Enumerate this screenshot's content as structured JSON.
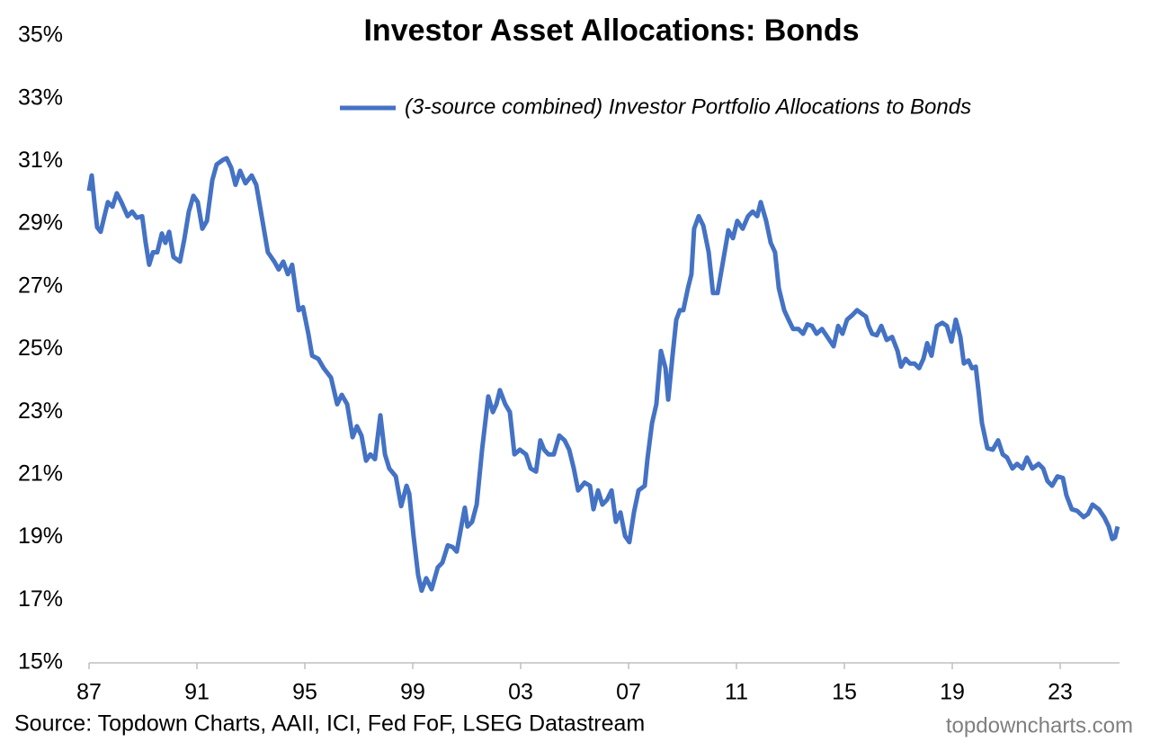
{
  "chart_data": {
    "type": "line",
    "title": "Investor Asset Allocations: Bonds",
    "source": "Source: Topdown Charts, AAII, ICI, Fed FoF, LSEG Datastream",
    "watermark": "topdowncharts.com",
    "legend": "top",
    "grid": false,
    "xlim": [
      1987,
      2025.2
    ],
    "xticks": [
      {
        "value": 1987,
        "label": "87"
      },
      {
        "value": 1991,
        "label": "91"
      },
      {
        "value": 1995,
        "label": "95"
      },
      {
        "value": 1999,
        "label": "99"
      },
      {
        "value": 2003,
        "label": "03"
      },
      {
        "value": 2007,
        "label": "07"
      },
      {
        "value": 2011,
        "label": "11"
      },
      {
        "value": 2015,
        "label": "15"
      },
      {
        "value": 2019,
        "label": "19"
      },
      {
        "value": 2023,
        "label": "23"
      }
    ],
    "ylim": [
      15,
      35
    ],
    "yticks": [
      {
        "value": 15,
        "label": "15%"
      },
      {
        "value": 17,
        "label": "17%"
      },
      {
        "value": 19,
        "label": "19%"
      },
      {
        "value": 21,
        "label": "21%"
      },
      {
        "value": 23,
        "label": "23%"
      },
      {
        "value": 25,
        "label": "25%"
      },
      {
        "value": 27,
        "label": "27%"
      },
      {
        "value": 29,
        "label": "29%"
      },
      {
        "value": 31,
        "label": "31%"
      },
      {
        "value": 33,
        "label": "33%"
      },
      {
        "value": 35,
        "label": "35%"
      }
    ],
    "x": [
      1987.0,
      1987.1,
      1987.2,
      1987.3,
      1987.43,
      1987.57,
      1987.7,
      1987.87,
      1988.03,
      1988.2,
      1988.43,
      1988.6,
      1988.77,
      1988.97,
      1989.1,
      1989.23,
      1989.37,
      1989.53,
      1989.7,
      1989.83,
      1989.97,
      1990.13,
      1990.37,
      1990.53,
      1990.7,
      1990.87,
      1991.03,
      1991.2,
      1991.37,
      1991.57,
      1991.73,
      1991.97,
      1992.1,
      1992.27,
      1992.43,
      1992.6,
      1992.8,
      1993.03,
      1993.2,
      1993.43,
      1993.63,
      1993.87,
      1994.03,
      1994.2,
      1994.37,
      1994.53,
      1994.77,
      1994.93,
      1995.13,
      1995.27,
      1995.5,
      1995.7,
      1995.97,
      1996.2,
      1996.37,
      1996.57,
      1996.77,
      1996.93,
      1997.1,
      1997.27,
      1997.43,
      1997.6,
      1997.8,
      1997.97,
      1998.13,
      1998.37,
      1998.57,
      1998.77,
      1998.87,
      1999.03,
      1999.2,
      1999.33,
      1999.5,
      1999.7,
      1999.93,
      2000.1,
      2000.3,
      2000.47,
      2000.63,
      2000.8,
      2000.93,
      2001.03,
      2001.2,
      2001.37,
      2001.57,
      2001.8,
      2001.97,
      2002.1,
      2002.23,
      2002.43,
      2002.6,
      2002.77,
      2002.97,
      2003.2,
      2003.37,
      2003.57,
      2003.73,
      2003.87,
      2004.03,
      2004.23,
      2004.43,
      2004.63,
      2004.8,
      2004.97,
      2005.13,
      2005.37,
      2005.57,
      2005.7,
      2005.87,
      2006.03,
      2006.2,
      2006.37,
      2006.53,
      2006.7,
      2006.87,
      2007.03,
      2007.2,
      2007.37,
      2007.6,
      2007.7,
      2007.87,
      2008.03,
      2008.2,
      2008.37,
      2008.47,
      2008.63,
      2008.77,
      2008.9,
      2009.03,
      2009.2,
      2009.33,
      2009.43,
      2009.6,
      2009.77,
      2009.97,
      2010.13,
      2010.3,
      2010.5,
      2010.7,
      2010.87,
      2011.03,
      2011.23,
      2011.43,
      2011.6,
      2011.77,
      2011.9,
      2012.1,
      2012.27,
      2012.43,
      2012.57,
      2012.77,
      2012.93,
      2013.1,
      2013.3,
      2013.47,
      2013.63,
      2013.8,
      2013.97,
      2014.17,
      2014.37,
      2014.6,
      2014.77,
      2014.93,
      2015.1,
      2015.3,
      2015.47,
      2015.63,
      2015.8,
      2015.9,
      2016.03,
      2016.2,
      2016.37,
      2016.57,
      2016.77,
      2016.97,
      2017.1,
      2017.27,
      2017.43,
      2017.6,
      2017.77,
      2017.93,
      2018.07,
      2018.23,
      2018.43,
      2018.63,
      2018.8,
      2018.97,
      2019.13,
      2019.3,
      2019.43,
      2019.6,
      2019.73,
      2019.87,
      2019.97,
      2020.1,
      2020.3,
      2020.5,
      2020.7,
      2020.87,
      2021.03,
      2021.23,
      2021.4,
      2021.6,
      2021.77,
      2021.97,
      2022.2,
      2022.37,
      2022.53,
      2022.7,
      2022.9,
      2023.1,
      2023.23,
      2023.43,
      2023.63,
      2023.87,
      2024.03,
      2024.2,
      2024.43,
      2024.63,
      2024.8,
      2024.93,
      2025.03,
      2025.13
    ],
    "series": [
      {
        "name": "(3-source combined) Investor Portfolio Allocations to Bonds",
        "color": "#4472c4",
        "values": [
          30.06,
          30.55,
          29.7,
          28.9,
          28.75,
          29.25,
          29.7,
          29.55,
          29.98,
          29.7,
          29.25,
          29.4,
          29.2,
          29.25,
          28.4,
          27.7,
          28.1,
          28.1,
          28.7,
          28.4,
          28.75,
          27.95,
          27.8,
          28.5,
          29.4,
          29.9,
          29.7,
          28.85,
          29.1,
          30.4,
          30.9,
          31.05,
          31.1,
          30.8,
          30.25,
          30.7,
          30.3,
          30.55,
          30.25,
          29.1,
          28.1,
          27.8,
          27.55,
          27.8,
          27.4,
          27.7,
          26.25,
          26.35,
          25.5,
          24.8,
          24.7,
          24.4,
          24.1,
          23.25,
          23.55,
          23.25,
          22.2,
          22.55,
          22.25,
          21.45,
          21.65,
          21.5,
          22.9,
          21.65,
          21.2,
          20.95,
          20.0,
          20.65,
          20.4,
          19.05,
          17.8,
          17.3,
          17.7,
          17.35,
          18.05,
          18.2,
          18.75,
          18.7,
          18.55,
          19.35,
          19.95,
          19.35,
          19.5,
          20.05,
          21.8,
          23.5,
          23.0,
          23.25,
          23.7,
          23.25,
          23.0,
          21.65,
          21.8,
          21.65,
          21.2,
          21.1,
          22.1,
          21.8,
          21.65,
          21.65,
          22.25,
          22.1,
          21.8,
          21.2,
          20.5,
          20.75,
          20.65,
          19.9,
          20.5,
          20.05,
          20.2,
          20.5,
          19.5,
          19.8,
          19.05,
          18.85,
          19.8,
          20.5,
          20.65,
          21.5,
          22.65,
          23.25,
          24.95,
          24.4,
          23.4,
          24.8,
          25.95,
          26.25,
          26.25,
          26.95,
          27.4,
          28.85,
          29.25,
          28.95,
          28.1,
          26.8,
          26.8,
          27.8,
          28.8,
          28.55,
          29.1,
          28.85,
          29.25,
          29.4,
          29.25,
          29.7,
          29.1,
          28.4,
          28.1,
          26.95,
          26.25,
          25.95,
          25.65,
          25.65,
          25.5,
          25.8,
          25.75,
          25.5,
          25.65,
          25.4,
          25.1,
          25.75,
          25.5,
          25.95,
          26.1,
          26.25,
          26.15,
          26.05,
          25.75,
          25.5,
          25.45,
          25.75,
          25.3,
          25.4,
          24.95,
          24.45,
          24.7,
          24.55,
          24.55,
          24.4,
          24.7,
          25.2,
          24.8,
          25.75,
          25.85,
          25.75,
          25.25,
          25.95,
          25.4,
          24.55,
          24.65,
          24.4,
          24.45,
          23.7,
          22.65,
          21.85,
          21.8,
          22.1,
          21.65,
          21.55,
          21.2,
          21.35,
          21.2,
          21.55,
          21.2,
          21.35,
          21.2,
          20.8,
          20.65,
          20.95,
          20.9,
          20.35,
          19.9,
          19.85,
          19.65,
          19.75,
          20.05,
          19.9,
          19.65,
          19.35,
          18.95,
          19.0,
          19.35
        ]
      }
    ]
  }
}
